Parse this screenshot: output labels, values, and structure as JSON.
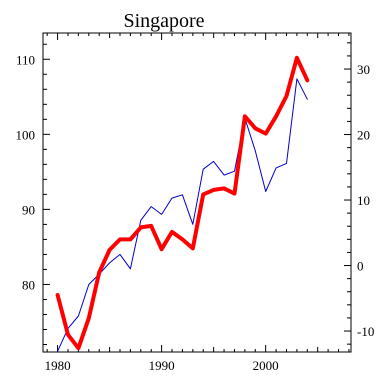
{
  "chart_data": {
    "type": "line",
    "title": "Singapore",
    "xlabel": "",
    "ylabel_left": "",
    "ylabel_right": "",
    "xlim": [
      1978.6,
      2008.2
    ],
    "ylim_left": [
      71,
      113.5
    ],
    "ylim_right": [
      -13.2,
      35.5
    ],
    "x_ticks": [
      1980,
      1990,
      2000
    ],
    "left_ticks": [
      80,
      90,
      100,
      110
    ],
    "right_ticks": [
      -10,
      0,
      10,
      20,
      30
    ],
    "grid": false,
    "x": [
      1980,
      1981,
      1982,
      1983,
      1984,
      1985,
      1986,
      1987,
      1988,
      1989,
      1990,
      1991,
      1992,
      1993,
      1994,
      1995,
      1996,
      1997,
      1998,
      1999,
      2000,
      2001,
      2002,
      2003,
      2004
    ],
    "series": [
      {
        "axis": "right",
        "color": "#0000cc",
        "width": "thin",
        "values": [
          -13.1,
          -9.6,
          -7.7,
          -2.9,
          -1.3,
          0.4,
          1.7,
          -0.5,
          6.9,
          9.0,
          7.8,
          10.3,
          10.8,
          6.3,
          14.7,
          15.9,
          13.8,
          14.4,
          22.5,
          17.5,
          11.3,
          14.9,
          15.6,
          28.5,
          25.4
        ]
      },
      {
        "axis": "left",
        "color": "#ff0000",
        "width": "thick",
        "values": [
          78.6,
          73.3,
          71.5,
          75.5,
          81.6,
          84.6,
          86.0,
          86.0,
          87.6,
          87.8,
          84.7,
          87.0,
          86.0,
          84.8,
          92.0,
          92.6,
          92.8,
          92.1,
          102.4,
          100.8,
          100.1,
          102.4,
          105.1,
          110.2,
          107.2
        ]
      }
    ],
    "colors": {
      "axis": "#000000",
      "background": "#ffffff"
    }
  }
}
